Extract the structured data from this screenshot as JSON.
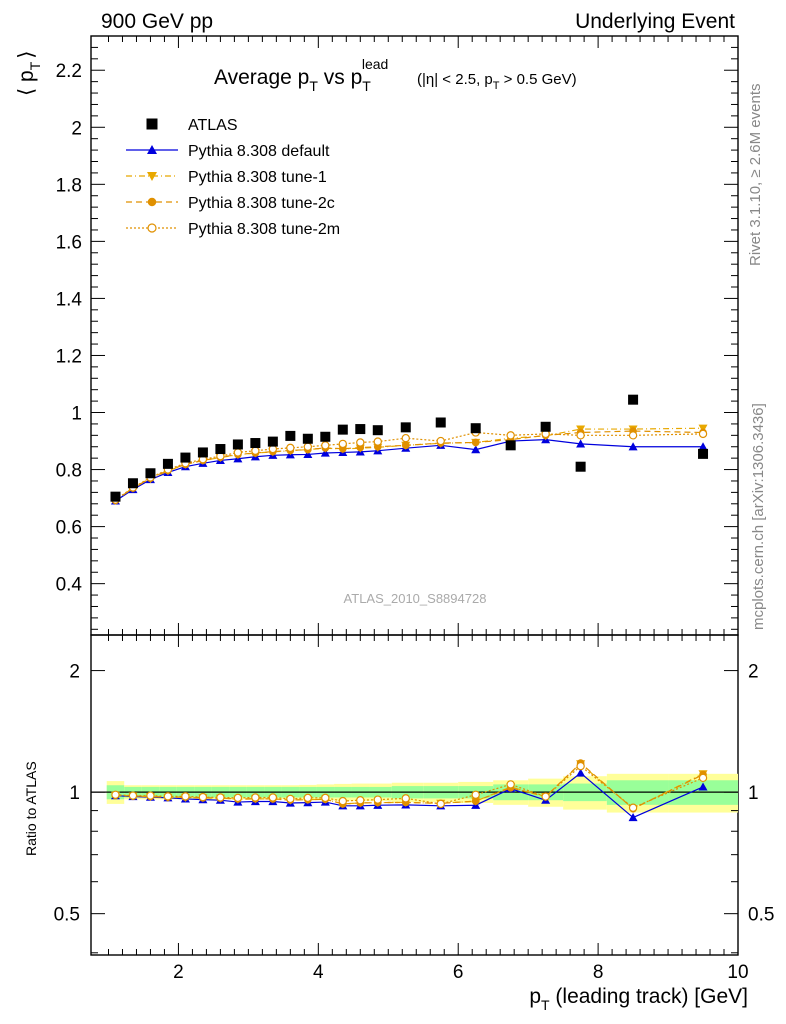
{
  "header": {
    "left": "900 GeV pp",
    "right": "Underlying Event"
  },
  "side_text": {
    "top": "Rivet 3.1.10, ≥ 2.6M events",
    "bottom": "mcplots.cern.ch [arXiv:1306.3436]"
  },
  "watermark": "ATLAS_2010_S8894728",
  "chart_data": {
    "type": "scatter",
    "title_main": "Average p",
    "title_sub_T": "T",
    "title_vs": " vs p",
    "title_sup": "lead",
    "title_tail_parts": [
      "(|η| < 2.5, p",
      "T",
      " > 0.5 GeV)"
    ],
    "ylabel_top": "⟨ p",
    "ylabel_top_sub": "T",
    "ylabel_top_close": "⟩",
    "ylabel_bottom": "Ratio to ATLAS",
    "xlabel_main": "p",
    "xlabel_sub": "T",
    "xlabel_rest": " (leading track) [GeV]",
    "xlim": [
      0.75,
      10.0
    ],
    "ylim_top": [
      0.22,
      2.32
    ],
    "ylim_bottom": [
      0.395,
      2.45
    ],
    "x_ticks": [
      "2",
      "4",
      "6",
      "8",
      "10"
    ],
    "y_ticks_top": [
      "0.4",
      "0.6",
      "0.8",
      "1",
      "1.2",
      "1.4",
      "1.6",
      "1.8",
      "2",
      "2.2"
    ],
    "y_ticks_bottom": [
      "0.5",
      "1",
      "2"
    ],
    "legend": [
      {
        "name": "ATLAS",
        "color": "#000000",
        "marker": "square",
        "style": "none"
      },
      {
        "name": "Pythia 8.308 default",
        "color": "#0000dd",
        "marker": "triangle",
        "style": "solid"
      },
      {
        "name": "Pythia 8.308 tune-1",
        "color": "#e8a800",
        "marker": "triangle-down",
        "style": "dashdot"
      },
      {
        "name": "Pythia 8.308 tune-2c",
        "color": "#e09000",
        "marker": "circle",
        "style": "dashed"
      },
      {
        "name": "Pythia 8.308 tune-2m",
        "color": "#e09000",
        "marker": "circle-open",
        "style": "dotted"
      }
    ],
    "x": [
      1.1,
      1.35,
      1.6,
      1.85,
      2.1,
      2.35,
      2.6,
      2.85,
      3.1,
      3.35,
      3.6,
      3.85,
      4.1,
      4.35,
      4.6,
      4.85,
      5.25,
      5.75,
      6.25,
      6.75,
      7.25,
      7.75,
      8.5,
      9.5
    ],
    "atlas": [
      0.705,
      0.752,
      0.787,
      0.82,
      0.842,
      0.86,
      0.872,
      0.888,
      0.893,
      0.898,
      0.918,
      0.908,
      0.915,
      0.94,
      0.942,
      0.938,
      0.948,
      0.965,
      0.945,
      0.885,
      0.95,
      0.81,
      1.045,
      0.855
    ],
    "series": [
      {
        "name": "Pythia 8.308 default",
        "values": [
          0.69,
          0.73,
          0.765,
          0.79,
          0.81,
          0.822,
          0.832,
          0.838,
          0.845,
          0.85,
          0.852,
          0.853,
          0.858,
          0.86,
          0.862,
          0.866,
          0.875,
          0.885,
          0.87,
          0.9,
          0.905,
          0.89,
          0.88,
          0.88
        ]
      },
      {
        "name": "Pythia 8.308 tune-1",
        "values": [
          0.692,
          0.735,
          0.768,
          0.795,
          0.818,
          0.832,
          0.842,
          0.852,
          0.858,
          0.862,
          0.866,
          0.87,
          0.875,
          0.872,
          0.875,
          0.878,
          0.885,
          0.892,
          0.895,
          0.91,
          0.918,
          0.942,
          0.942,
          0.945
        ]
      },
      {
        "name": "Pythia 8.308 tune-2c",
        "values": [
          0.692,
          0.735,
          0.77,
          0.797,
          0.818,
          0.832,
          0.843,
          0.853,
          0.858,
          0.863,
          0.867,
          0.87,
          0.876,
          0.873,
          0.877,
          0.88,
          0.885,
          0.893,
          0.895,
          0.905,
          0.92,
          0.93,
          0.935,
          0.93
        ]
      },
      {
        "name": "Pythia 8.308 tune-2m",
        "values": [
          0.694,
          0.737,
          0.772,
          0.8,
          0.822,
          0.836,
          0.847,
          0.86,
          0.866,
          0.872,
          0.876,
          0.88,
          0.885,
          0.89,
          0.895,
          0.898,
          0.91,
          0.9,
          0.93,
          0.92,
          0.925,
          0.92,
          0.92,
          0.925
        ]
      }
    ],
    "ratio": [
      {
        "name": "Pythia 8.308 default",
        "values": [
          0.98,
          0.975,
          0.972,
          0.968,
          0.962,
          0.958,
          0.955,
          0.945,
          0.948,
          0.948,
          0.94,
          0.942,
          0.945,
          0.925,
          0.925,
          0.928,
          0.93,
          0.925,
          0.928,
          1.02,
          0.955,
          1.115,
          0.865,
          1.03
        ]
      },
      {
        "name": "Pythia 8.308 tune-1",
        "values": [
          0.982,
          0.978,
          0.975,
          0.97,
          0.97,
          0.968,
          0.966,
          0.96,
          0.962,
          0.962,
          0.955,
          0.958,
          0.96,
          0.935,
          0.94,
          0.942,
          0.943,
          0.938,
          0.95,
          1.03,
          0.975,
          1.175,
          0.91,
          1.11
        ]
      },
      {
        "name": "Pythia 8.308 tune-2c",
        "values": [
          0.982,
          0.978,
          0.976,
          0.972,
          0.972,
          0.968,
          0.966,
          0.962,
          0.963,
          0.962,
          0.956,
          0.958,
          0.96,
          0.935,
          0.94,
          0.942,
          0.943,
          0.938,
          0.95,
          1.025,
          0.975,
          1.18,
          0.91,
          1.105
        ]
      },
      {
        "name": "Pythia 8.308 tune-2m",
        "values": [
          0.985,
          0.98,
          0.98,
          0.976,
          0.976,
          0.972,
          0.97,
          0.968,
          0.97,
          0.97,
          0.962,
          0.968,
          0.968,
          0.95,
          0.955,
          0.958,
          0.965,
          0.935,
          0.985,
          1.045,
          0.975,
          1.16,
          0.915,
          1.085
        ]
      }
    ],
    "band_inner_half": [
      0.04,
      0.03,
      0.03,
      0.03,
      0.03,
      0.03,
      0.03,
      0.03,
      0.03,
      0.03,
      0.03,
      0.03,
      0.03,
      0.03,
      0.03,
      0.03,
      0.035,
      0.035,
      0.035,
      0.045,
      0.045,
      0.05,
      0.07,
      0.07
    ],
    "band_outer_half": [
      0.065,
      0.04,
      0.04,
      0.04,
      0.04,
      0.04,
      0.04,
      0.04,
      0.04,
      0.04,
      0.04,
      0.042,
      0.045,
      0.048,
      0.05,
      0.05,
      0.055,
      0.055,
      0.06,
      0.07,
      0.08,
      0.095,
      0.11,
      0.11
    ]
  }
}
